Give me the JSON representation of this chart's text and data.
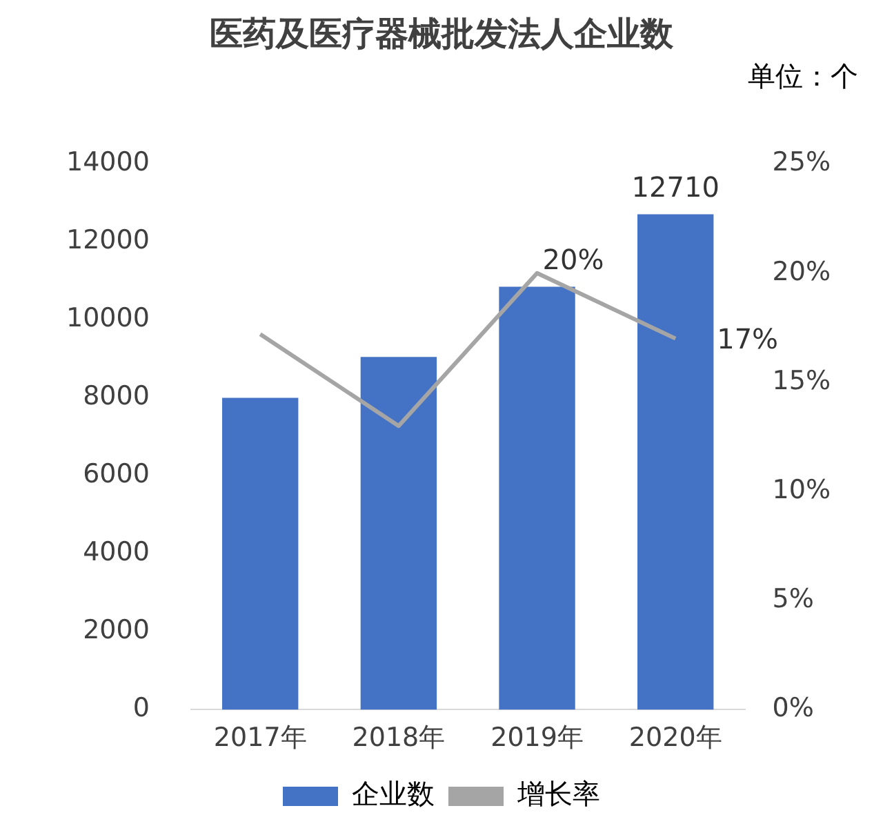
{
  "chart_data": {
    "type": "bar",
    "title": "医药及医疗器械批发法人企业数",
    "subtitle": "单位：个",
    "categories": [
      "2017年",
      "2018年",
      "2019年",
      "2020年"
    ],
    "series": [
      {
        "name": "企业数",
        "color": "#4472c4",
        "values": [
          8000,
          9050,
          10850,
          12710
        ],
        "value_labels": [
          null,
          null,
          null,
          "12710"
        ]
      },
      {
        "name": "增长率",
        "type": "line",
        "axis": "y2",
        "color": "#a5a5a5",
        "values": [
          17.2,
          13.0,
          20,
          17
        ],
        "value_labels": [
          null,
          null,
          "20%",
          "17%"
        ]
      }
    ],
    "ylim": [
      0,
      14000
    ],
    "yticks": [
      0,
      2000,
      4000,
      6000,
      8000,
      10000,
      12000,
      14000
    ],
    "y2lim": [
      0,
      25
    ],
    "y2ticks": [
      {
        "value": 0,
        "label": "0%"
      },
      {
        "value": 5,
        "label": "5%"
      },
      {
        "value": 10,
        "label": "10%"
      },
      {
        "value": 15,
        "label": "15%"
      },
      {
        "value": 20,
        "label": "20%"
      },
      {
        "value": 25,
        "label": "25%"
      }
    ],
    "grid": false,
    "legend": "bottom",
    "marker": "none",
    "line_style": "solid"
  }
}
